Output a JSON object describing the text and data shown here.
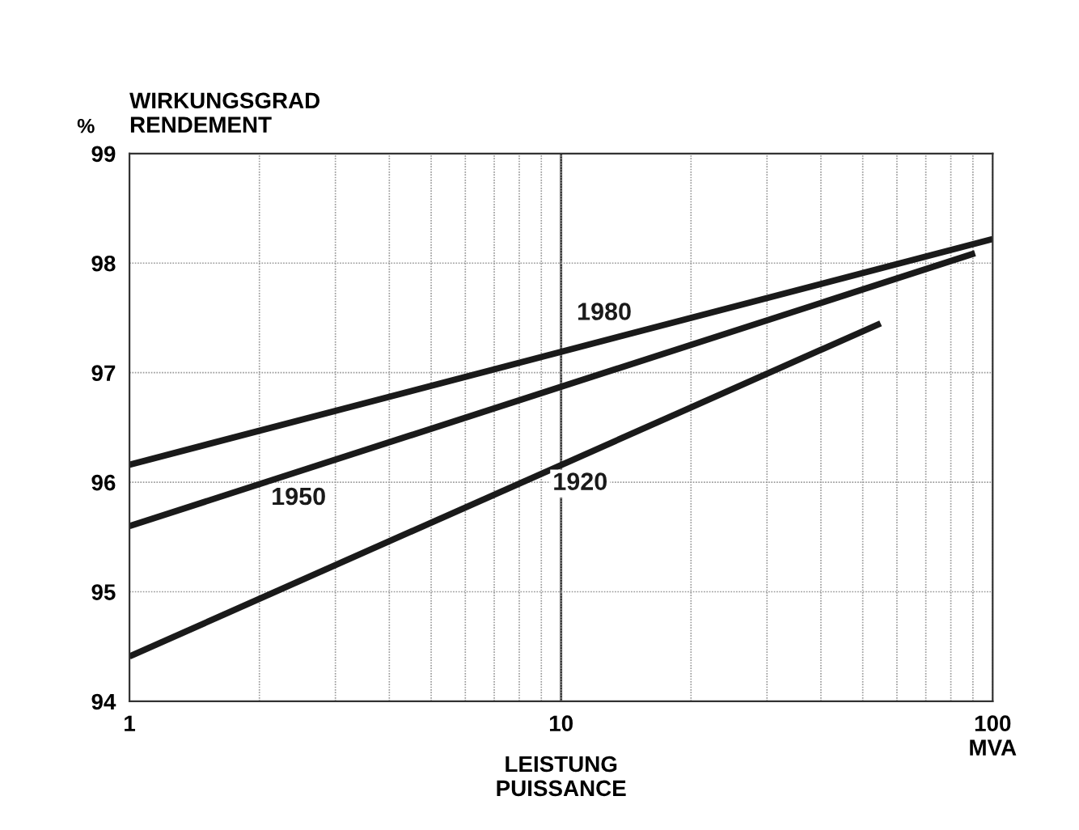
{
  "chart_data": {
    "type": "line",
    "xlabel": "LEISTUNG\nPUISSANCE",
    "ylabel": "WIRKUNGSGRAD\nRENDEMENT",
    "log": "x",
    "xlim": [
      1,
      100
    ],
    "xticks": [
      1,
      10,
      {
        "value": 100,
        "label": "100\nMVA"
      }
    ],
    "ylim": [
      94,
      99
    ],
    "yticks": [
      94,
      95,
      96,
      97,
      98,
      99
    ],
    "grid": true,
    "legend": false,
    "marker": "none",
    "line_style": "solid",
    "series": [
      {
        "name": "1980",
        "color": "#1a1a1a",
        "x": [
          1,
          100
        ],
        "values": [
          96.16,
          98.22
        ]
      },
      {
        "name": "1950",
        "color": "#1a1a1a",
        "x": [
          1,
          91
        ],
        "values": [
          95.6,
          98.09
        ]
      },
      {
        "name": "1920",
        "color": "#1a1a1a",
        "x": [
          1,
          55
        ],
        "values": [
          94.41,
          97.45
        ]
      }
    ],
    "ref_lines": [
      {
        "axis": "x",
        "value": 10,
        "color": "#333333"
      }
    ],
    "annotations": [
      "%"
    ]
  }
}
